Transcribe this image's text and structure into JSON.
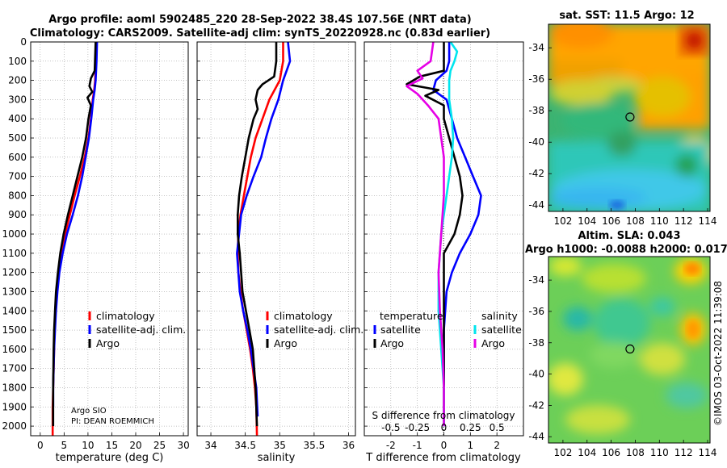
{
  "header": {
    "line1": "Argo profile: aoml 5902485_220 28-Sep-2022 38.4S 107.56E (NRT data)",
    "line2": "Climatology: CARS2009. Satellite-adj clim: synTS_20220928.nc (0.83d earlier)"
  },
  "credit": {
    "line1": "Argo SIO",
    "line2": "PI: DEAN ROEMMICH"
  },
  "watermark": "©IMOS 03-Oct-2022 11:39:08",
  "colors": {
    "red": "#ff0000",
    "blue": "#0000ff",
    "black": "#000000",
    "cyan": "#00e5ee",
    "magenta": "#e600e6"
  },
  "chart_data": [
    {
      "type": "line",
      "name": "temperature-profile",
      "xlabel": "temperature (deg C)",
      "ylabel": "",
      "xlim": [
        -2,
        31
      ],
      "ylim": [
        2050,
        0
      ],
      "xticks": [
        0,
        5,
        10,
        15,
        20,
        25,
        30
      ],
      "yticks": [
        0,
        100,
        200,
        300,
        400,
        500,
        600,
        700,
        800,
        900,
        1000,
        1100,
        1200,
        1300,
        1400,
        1500,
        1600,
        1700,
        1800,
        1900,
        2000
      ],
      "grid": true,
      "legend": {
        "position": "center-right",
        "items": [
          {
            "label": "climatology",
            "color": "#ff0000"
          },
          {
            "label": "satellite-adj. clim.",
            "color": "#0000ff"
          },
          {
            "label": "Argo",
            "color": "#000000"
          }
        ]
      },
      "series": [
        {
          "name": "climatology",
          "color": "#ff0000",
          "x": [
            11.7,
            11.6,
            11.5,
            11.3,
            11.0,
            10.6,
            10.1,
            9.3,
            8.3,
            7.2,
            6.2,
            5.2,
            4.5,
            3.9,
            3.5,
            3.2,
            3.0,
            2.9,
            2.8,
            2.7,
            2.6,
            2.6
          ],
          "y": [
            0,
            100,
            200,
            250,
            300,
            400,
            500,
            600,
            700,
            800,
            900,
            1000,
            1100,
            1200,
            1300,
            1400,
            1500,
            1600,
            1700,
            1800,
            1900,
            2050
          ]
        },
        {
          "name": "satellite-adj. clim.",
          "color": "#0000ff",
          "x": [
            11.9,
            11.8,
            11.6,
            11.4,
            11.1,
            10.7,
            10.2,
            9.5,
            8.8,
            7.9,
            6.8,
            5.6,
            4.7,
            4.0,
            3.6,
            3.3,
            3.1,
            2.9,
            2.8,
            2.7,
            2.7
          ],
          "y": [
            0,
            100,
            200,
            250,
            300,
            400,
            500,
            600,
            700,
            800,
            900,
            1000,
            1100,
            1200,
            1300,
            1400,
            1500,
            1600,
            1700,
            1800,
            1900
          ]
        },
        {
          "name": "Argo",
          "color": "#000000",
          "x": [
            11.6,
            11.4,
            10.6,
            10.3,
            10.9,
            9.9,
            10.6,
            10.1,
            9.6,
            8.8,
            7.8,
            6.8,
            5.8,
            4.9,
            4.2,
            3.7,
            3.3,
            3.1,
            2.9,
            2.8,
            2.7,
            2.7
          ],
          "y": [
            0,
            150,
            190,
            230,
            260,
            290,
            330,
            400,
            500,
            600,
            700,
            800,
            900,
            1000,
            1100,
            1200,
            1300,
            1400,
            1500,
            1600,
            1800,
            2000
          ]
        }
      ]
    },
    {
      "type": "line",
      "name": "salinity-profile",
      "xlabel": "salinity",
      "ylabel": "",
      "xlim": [
        33.8,
        36.1
      ],
      "ylim": [
        2050,
        0
      ],
      "xticks": [
        34,
        34.5,
        35,
        35.5,
        36
      ],
      "yticks": [
        0,
        100,
        200,
        300,
        400,
        500,
        600,
        700,
        800,
        900,
        1000,
        1100,
        1200,
        1300,
        1400,
        1500,
        1600,
        1700,
        1800,
        1900,
        2000
      ],
      "grid": true,
      "legend": {
        "position": "center-right",
        "items": [
          {
            "label": "climatology",
            "color": "#ff0000"
          },
          {
            "label": "satellite-adj. clim.",
            "color": "#0000ff"
          },
          {
            "label": "Argo",
            "color": "#000000"
          }
        ]
      },
      "series": [
        {
          "name": "climatology",
          "color": "#ff0000",
          "x": [
            35.05,
            35.05,
            35.0,
            34.85,
            34.75,
            34.65,
            34.58,
            34.53,
            34.48,
            34.43,
            34.4,
            34.39,
            34.4,
            34.43,
            34.47,
            34.52,
            34.57,
            34.61,
            34.64,
            34.66,
            34.67
          ],
          "y": [
            0,
            100,
            200,
            300,
            400,
            500,
            600,
            700,
            800,
            900,
            1000,
            1100,
            1200,
            1300,
            1400,
            1500,
            1600,
            1700,
            1800,
            1900,
            2050
          ]
        },
        {
          "name": "satellite-adj. clim.",
          "color": "#0000ff",
          "x": [
            35.12,
            35.15,
            35.1,
            35.05,
            34.98,
            34.88,
            34.8,
            34.73,
            34.62,
            34.52,
            34.44,
            34.38,
            34.42,
            34.47,
            34.53,
            34.58,
            34.62,
            34.66,
            34.68
          ],
          "y": [
            0,
            100,
            150,
            200,
            300,
            400,
            500,
            600,
            700,
            800,
            900,
            1100,
            1300,
            1400,
            1500,
            1600,
            1700,
            1800,
            1950
          ]
        },
        {
          "name": "Argo",
          "color": "#000000",
          "x": [
            34.95,
            34.95,
            34.92,
            34.75,
            34.68,
            34.65,
            34.68,
            34.62,
            34.55,
            34.5,
            34.45,
            34.41,
            34.39,
            34.39,
            34.42,
            34.46,
            34.51,
            34.56,
            34.61,
            34.65,
            34.67
          ],
          "y": [
            0,
            100,
            180,
            220,
            250,
            300,
            350,
            400,
            500,
            600,
            700,
            800,
            900,
            1000,
            1100,
            1300,
            1400,
            1500,
            1600,
            1800,
            2000
          ]
        }
      ]
    },
    {
      "type": "line",
      "name": "difference-from-climatology",
      "xlabel": "T difference from climatology",
      "ylabel": "",
      "xlim": [
        -3,
        3
      ],
      "ylim": [
        2050,
        0
      ],
      "xticks": [
        -2,
        -1,
        0,
        1,
        2
      ],
      "top_axis_label": "S difference from climatology",
      "top_ticks": [
        "-0.5",
        "-0.25",
        "0",
        "0.25",
        "0.5"
      ],
      "top_tick_values": [
        -2,
        -1,
        0,
        1,
        2
      ],
      "yticks": [
        0,
        100,
        200,
        300,
        400,
        500,
        600,
        700,
        800,
        900,
        1000,
        1100,
        1200,
        1300,
        1400,
        1500,
        1600,
        1700,
        1800,
        1900,
        2000
      ],
      "grid": true,
      "legend": {
        "temperature_heading": "temperature",
        "salinity_heading": "salinity",
        "temperature_items": [
          {
            "label": "satellite",
            "color": "#0000ff"
          },
          {
            "label": "Argo",
            "color": "#000000"
          }
        ],
        "salinity_items": [
          {
            "label": "satellite",
            "color": "#00e5ee"
          },
          {
            "label": "Argo",
            "color": "#e600e6"
          }
        ]
      },
      "series": [
        {
          "name": "temperature satellite",
          "color": "#0000ff",
          "x": [
            0.2,
            0.2,
            0.1,
            -0.3,
            -0.4,
            0.1,
            0.3,
            0.5,
            0.8,
            1.1,
            1.4,
            1.3,
            1.0,
            0.6,
            0.3,
            0.1,
            0.0,
            0.0,
            0.0,
            0.0
          ],
          "y": [
            0,
            100,
            150,
            200,
            250,
            300,
            400,
            500,
            600,
            700,
            800,
            900,
            1000,
            1100,
            1200,
            1300,
            1500,
            1700,
            1900,
            2000
          ]
        },
        {
          "name": "temperature Argo",
          "color": "#000000",
          "x": [
            0.0,
            0.0,
            -0.9,
            -1.4,
            -0.2,
            -0.7,
            0.0,
            0.0,
            0.2,
            0.4,
            0.6,
            0.7,
            0.6,
            0.4,
            0.0,
            0.0,
            0.0,
            0.0,
            0.0,
            0.0
          ],
          "y": [
            0,
            150,
            180,
            220,
            250,
            280,
            330,
            400,
            500,
            600,
            700,
            800,
            900,
            1000,
            1100,
            1200,
            1400,
            1600,
            1800,
            2000
          ]
        },
        {
          "name": "salinity satellite",
          "color": "#00e5ee",
          "x": [
            0.25,
            0.5,
            0.4,
            0.25,
            0.2,
            0.2,
            0.3,
            0.35,
            0.3,
            0.2,
            0.1,
            -0.1,
            -0.2,
            -0.2,
            -0.1,
            0.0,
            0.0
          ],
          "y": [
            0,
            50,
            100,
            150,
            200,
            300,
            400,
            500,
            600,
            700,
            800,
            1000,
            1200,
            1400,
            1600,
            1800,
            2000
          ]
        },
        {
          "name": "salinity Argo",
          "color": "#e600e6",
          "x": [
            -0.4,
            -0.5,
            -1.0,
            -0.8,
            -1.4,
            -1.0,
            -0.6,
            -0.2,
            -0.1,
            0.0,
            0.0,
            -0.1,
            -0.2,
            -0.15,
            -0.05,
            0.0,
            0.0
          ],
          "y": [
            0,
            100,
            150,
            190,
            230,
            270,
            330,
            400,
            500,
            600,
            800,
            1000,
            1200,
            1400,
            1600,
            1800,
            2000
          ]
        }
      ]
    },
    {
      "type": "heatmap",
      "name": "sat-sst-map",
      "title": "sat. SST: 11.5 Argo: 12",
      "xticks": [
        102,
        104,
        106,
        108,
        110,
        112,
        114
      ],
      "yticks": [
        -34,
        -36,
        -38,
        -40,
        -42,
        -44
      ],
      "xlim": [
        100.8,
        114.2
      ],
      "ylim": [
        -44.4,
        -32.5
      ],
      "marker": {
        "lon": 107.56,
        "lat": -38.4
      }
    },
    {
      "type": "heatmap",
      "name": "altim-sla-map",
      "title": "Altim. SLA: 0.043",
      "subtitle": "Argo h1000: -0.0088 h2000: 0.017",
      "xticks": [
        102,
        104,
        106,
        108,
        110,
        112,
        114
      ],
      "yticks": [
        -34,
        -36,
        -38,
        -40,
        -42,
        -44
      ],
      "xlim": [
        100.8,
        114.2
      ],
      "ylim": [
        -44.4,
        -32.5
      ],
      "marker": {
        "lon": 107.56,
        "lat": -38.4
      }
    }
  ]
}
